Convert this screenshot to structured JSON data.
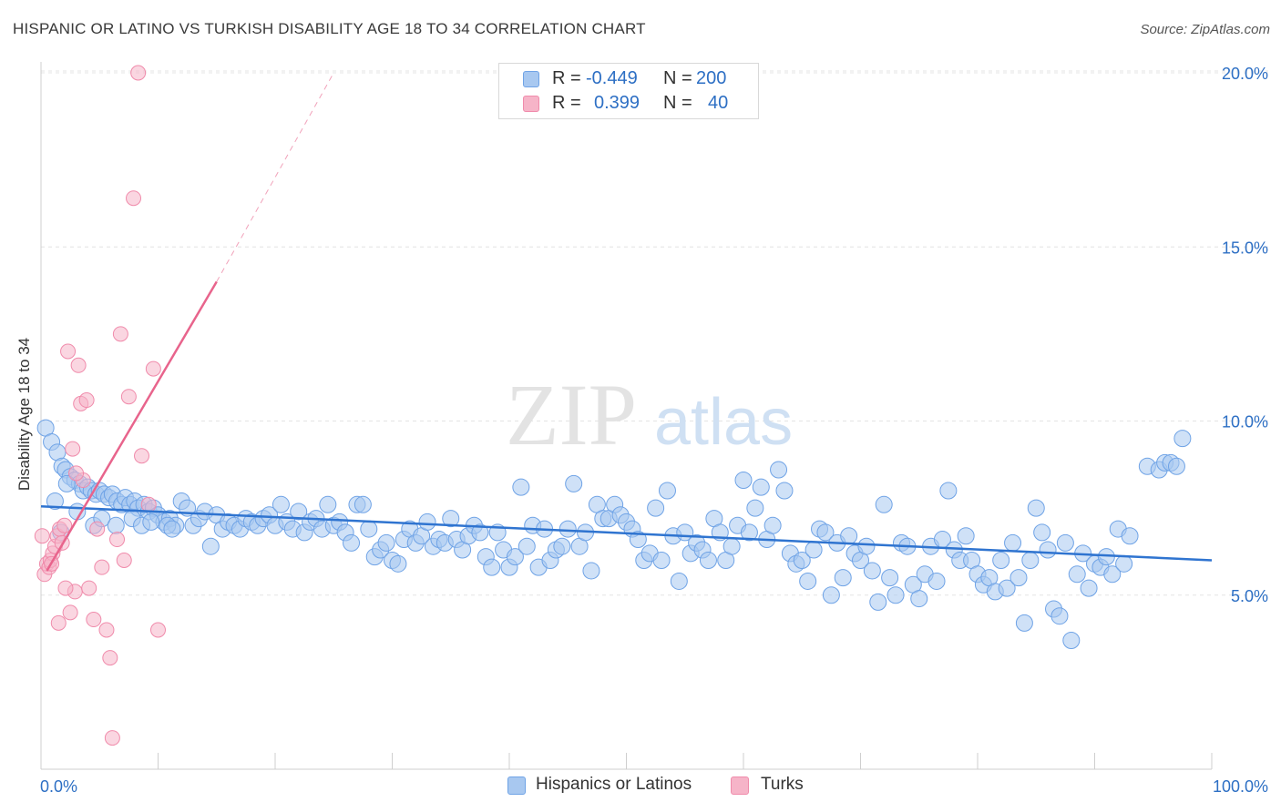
{
  "header": {
    "title": "HISPANIC OR LATINO VS TURKISH DISABILITY AGE 18 TO 34 CORRELATION CHART",
    "source": "Source: ZipAtlas.com"
  },
  "watermark": {
    "zip": "ZIP",
    "atlas": "atlas"
  },
  "legend_top": {
    "rows": [
      {
        "r_label": "R =",
        "r_value": "-0.449",
        "n_label": "N =",
        "n_value": "200",
        "color": "#a8c8f0"
      },
      {
        "r_label": "R =",
        "r_value": "0.399",
        "n_label": "N =",
        "n_value": "40",
        "color": "#f6b4c8"
      }
    ]
  },
  "legend_bottom": [
    {
      "label": "Hispanics or Latinos",
      "color": "#a8c8f0"
    },
    {
      "label": "Turks",
      "color": "#f6b4c8"
    }
  ],
  "chart_data": {
    "type": "scatter",
    "title": "HISPANIC OR LATINO VS TURKISH DISABILITY AGE 18 TO 34 CORRELATION CHART",
    "xlabel": "",
    "ylabel": "Disability Age 18 to 34",
    "xlim": [
      0,
      100
    ],
    "ylim": [
      0,
      20
    ],
    "x_tick_labels": [
      "0.0%",
      "100.0%"
    ],
    "y_ticks": [
      5,
      10,
      15,
      20
    ],
    "y_tick_labels": [
      "5.0%",
      "10.0%",
      "15.0%",
      "20.0%"
    ],
    "grid": true,
    "legend_position": "top-center",
    "series": [
      {
        "name": "Hispanics or Latinos",
        "color": "#6fa3e6",
        "fill": "#a8c8f0",
        "trend": {
          "x": [
            0,
            100
          ],
          "y": [
            7.55,
            6.0
          ],
          "color": "#2f74d0"
        },
        "points": [
          [
            0.4,
            9.8
          ],
          [
            0.9,
            9.4
          ],
          [
            1.4,
            9.1
          ],
          [
            1.8,
            8.7
          ],
          [
            2.1,
            8.6
          ],
          [
            2.5,
            8.4
          ],
          [
            2.9,
            8.3
          ],
          [
            3.3,
            8.2
          ],
          [
            3.6,
            8.0
          ],
          [
            4.0,
            8.1
          ],
          [
            4.3,
            8.0
          ],
          [
            4.7,
            7.9
          ],
          [
            5.0,
            8.0
          ],
          [
            5.4,
            7.9
          ],
          [
            5.8,
            7.8
          ],
          [
            6.1,
            7.9
          ],
          [
            6.5,
            7.7
          ],
          [
            6.9,
            7.6
          ],
          [
            7.2,
            7.8
          ],
          [
            7.6,
            7.6
          ],
          [
            8.0,
            7.7
          ],
          [
            8.3,
            7.5
          ],
          [
            8.8,
            7.6
          ],
          [
            9.2,
            7.4
          ],
          [
            9.6,
            7.5
          ],
          [
            10.0,
            7.3
          ],
          [
            10.5,
            7.1
          ],
          [
            11.0,
            7.2
          ],
          [
            11.5,
            7.0
          ],
          [
            12.0,
            7.7
          ],
          [
            12.5,
            7.5
          ],
          [
            13.0,
            7.0
          ],
          [
            13.5,
            7.2
          ],
          [
            14.0,
            7.4
          ],
          [
            14.5,
            6.4
          ],
          [
            15.0,
            7.3
          ],
          [
            15.5,
            6.9
          ],
          [
            16.0,
            7.1
          ],
          [
            16.5,
            7.0
          ],
          [
            17.0,
            6.9
          ],
          [
            17.5,
            7.2
          ],
          [
            18.0,
            7.1
          ],
          [
            18.5,
            7.0
          ],
          [
            19.0,
            7.2
          ],
          [
            19.5,
            7.3
          ],
          [
            20.0,
            7.0
          ],
          [
            20.5,
            7.6
          ],
          [
            21.0,
            7.1
          ],
          [
            21.5,
            6.9
          ],
          [
            22.0,
            7.4
          ],
          [
            22.5,
            6.8
          ],
          [
            23.0,
            7.1
          ],
          [
            23.5,
            7.2
          ],
          [
            24.0,
            6.9
          ],
          [
            24.5,
            7.6
          ],
          [
            25.0,
            7.0
          ],
          [
            25.5,
            7.1
          ],
          [
            26.0,
            6.8
          ],
          [
            26.5,
            6.5
          ],
          [
            27.0,
            7.6
          ],
          [
            27.5,
            7.6
          ],
          [
            28.0,
            6.9
          ],
          [
            28.5,
            6.1
          ],
          [
            29.0,
            6.3
          ],
          [
            29.5,
            6.5
          ],
          [
            30.0,
            6.0
          ],
          [
            30.5,
            5.9
          ],
          [
            31.0,
            6.6
          ],
          [
            31.5,
            6.9
          ],
          [
            32.0,
            6.5
          ],
          [
            32.5,
            6.7
          ],
          [
            33.0,
            7.1
          ],
          [
            33.5,
            6.4
          ],
          [
            34.0,
            6.6
          ],
          [
            34.5,
            6.5
          ],
          [
            35.0,
            7.2
          ],
          [
            35.5,
            6.6
          ],
          [
            36.0,
            6.3
          ],
          [
            36.5,
            6.7
          ],
          [
            37.0,
            7.0
          ],
          [
            37.5,
            6.8
          ],
          [
            38.0,
            6.1
          ],
          [
            38.5,
            5.8
          ],
          [
            39.0,
            6.8
          ],
          [
            39.5,
            6.3
          ],
          [
            40.0,
            5.8
          ],
          [
            40.5,
            6.1
          ],
          [
            41.0,
            8.1
          ],
          [
            41.5,
            6.4
          ],
          [
            42.0,
            7.0
          ],
          [
            42.5,
            5.8
          ],
          [
            43.0,
            6.9
          ],
          [
            43.5,
            6.0
          ],
          [
            44.0,
            6.3
          ],
          [
            44.5,
            6.4
          ],
          [
            45.0,
            6.9
          ],
          [
            45.5,
            8.2
          ],
          [
            46.0,
            6.4
          ],
          [
            46.5,
            6.8
          ],
          [
            47.0,
            5.7
          ],
          [
            47.5,
            7.6
          ],
          [
            48.0,
            7.2
          ],
          [
            48.5,
            7.2
          ],
          [
            49.0,
            7.6
          ],
          [
            49.5,
            7.3
          ],
          [
            50.0,
            7.1
          ],
          [
            50.5,
            6.9
          ],
          [
            51.0,
            6.6
          ],
          [
            51.5,
            6.0
          ],
          [
            52.0,
            6.2
          ],
          [
            52.5,
            7.5
          ],
          [
            53.0,
            6.0
          ],
          [
            53.5,
            8.0
          ],
          [
            54.0,
            6.7
          ],
          [
            54.5,
            5.4
          ],
          [
            55.0,
            6.8
          ],
          [
            55.5,
            6.2
          ],
          [
            56.0,
            6.5
          ],
          [
            56.5,
            6.3
          ],
          [
            57.0,
            6.0
          ],
          [
            57.5,
            7.2
          ],
          [
            58.0,
            6.8
          ],
          [
            58.5,
            6.0
          ],
          [
            59.0,
            6.4
          ],
          [
            59.5,
            7.0
          ],
          [
            60.0,
            8.3
          ],
          [
            60.5,
            6.8
          ],
          [
            61.0,
            7.5
          ],
          [
            61.5,
            8.1
          ],
          [
            62.0,
            6.6
          ],
          [
            62.5,
            7.0
          ],
          [
            63.0,
            8.6
          ],
          [
            63.5,
            8.0
          ],
          [
            64.0,
            6.2
          ],
          [
            64.5,
            5.9
          ],
          [
            65.0,
            6.0
          ],
          [
            65.5,
            5.4
          ],
          [
            66.0,
            6.3
          ],
          [
            66.5,
            6.9
          ],
          [
            67.0,
            6.8
          ],
          [
            67.5,
            5.0
          ],
          [
            68.0,
            6.5
          ],
          [
            68.5,
            5.5
          ],
          [
            69.0,
            6.7
          ],
          [
            69.5,
            6.2
          ],
          [
            70.0,
            6.0
          ],
          [
            70.5,
            6.4
          ],
          [
            71.0,
            5.7
          ],
          [
            71.5,
            4.8
          ],
          [
            72.0,
            7.6
          ],
          [
            72.5,
            5.5
          ],
          [
            73.0,
            5.0
          ],
          [
            73.5,
            6.5
          ],
          [
            74.0,
            6.4
          ],
          [
            74.5,
            5.3
          ],
          [
            75.0,
            4.9
          ],
          [
            75.5,
            5.6
          ],
          [
            76.0,
            6.4
          ],
          [
            76.5,
            5.4
          ],
          [
            77.0,
            6.6
          ],
          [
            77.5,
            8.0
          ],
          [
            78.0,
            6.3
          ],
          [
            78.5,
            6.0
          ],
          [
            79.0,
            6.7
          ],
          [
            79.5,
            6.0
          ],
          [
            80.0,
            5.6
          ],
          [
            80.5,
            5.3
          ],
          [
            81.0,
            5.5
          ],
          [
            81.5,
            5.1
          ],
          [
            82.0,
            6.0
          ],
          [
            82.5,
            5.2
          ],
          [
            83.0,
            6.5
          ],
          [
            83.5,
            5.5
          ],
          [
            84.0,
            4.2
          ],
          [
            84.5,
            6.0
          ],
          [
            85.0,
            7.5
          ],
          [
            85.5,
            6.8
          ],
          [
            86.0,
            6.3
          ],
          [
            86.5,
            4.6
          ],
          [
            87.0,
            4.4
          ],
          [
            87.5,
            6.5
          ],
          [
            88.0,
            3.7
          ],
          [
            88.5,
            5.6
          ],
          [
            89.0,
            6.2
          ],
          [
            89.5,
            5.2
          ],
          [
            90.0,
            5.9
          ],
          [
            90.5,
            5.8
          ],
          [
            91.0,
            6.1
          ],
          [
            91.5,
            5.6
          ],
          [
            92.0,
            6.9
          ],
          [
            92.5,
            5.9
          ],
          [
            93.0,
            6.7
          ],
          [
            94.5,
            8.7
          ],
          [
            95.5,
            8.6
          ],
          [
            96.0,
            8.8
          ],
          [
            96.5,
            8.8
          ],
          [
            97.0,
            8.7
          ],
          [
            97.5,
            9.5
          ],
          [
            1.2,
            7.7
          ],
          [
            1.7,
            6.8
          ],
          [
            2.2,
            8.2
          ],
          [
            3.1,
            7.4
          ],
          [
            4.5,
            7.0
          ],
          [
            5.2,
            7.2
          ],
          [
            6.4,
            7.0
          ],
          [
            7.8,
            7.2
          ],
          [
            8.6,
            7.0
          ],
          [
            9.4,
            7.1
          ],
          [
            10.8,
            7.0
          ],
          [
            11.2,
            6.9
          ]
        ]
      },
      {
        "name": "Turks",
        "color": "#f08bab",
        "fill": "#f6b4c8",
        "trend": {
          "x": [
            0.5,
            15
          ],
          "y": [
            5.7,
            14.0
          ],
          "color": "#e8648c",
          "extended_to": [
            25,
            20.0
          ]
        },
        "points": [
          [
            0.1,
            6.7
          ],
          [
            0.3,
            5.6
          ],
          [
            0.5,
            5.9
          ],
          [
            0.7,
            5.8
          ],
          [
            0.8,
            6.0
          ],
          [
            1.0,
            6.2
          ],
          [
            1.2,
            6.4
          ],
          [
            1.4,
            6.7
          ],
          [
            1.6,
            6.9
          ],
          [
            1.8,
            6.5
          ],
          [
            2.0,
            7.0
          ],
          [
            2.3,
            12.0
          ],
          [
            2.5,
            4.5
          ],
          [
            2.7,
            9.2
          ],
          [
            2.9,
            5.1
          ],
          [
            3.2,
            11.6
          ],
          [
            3.4,
            10.5
          ],
          [
            3.6,
            8.3
          ],
          [
            3.9,
            10.6
          ],
          [
            4.1,
            5.2
          ],
          [
            4.5,
            4.3
          ],
          [
            4.8,
            6.9
          ],
          [
            5.2,
            5.8
          ],
          [
            5.6,
            4.0
          ],
          [
            5.9,
            3.2
          ],
          [
            6.1,
            0.9
          ],
          [
            6.5,
            6.6
          ],
          [
            6.8,
            12.5
          ],
          [
            7.1,
            6.0
          ],
          [
            7.5,
            10.7
          ],
          [
            7.9,
            16.4
          ],
          [
            8.3,
            20.0
          ],
          [
            8.6,
            9.0
          ],
          [
            9.2,
            7.6
          ],
          [
            9.6,
            11.5
          ],
          [
            10.0,
            4.0
          ],
          [
            1.5,
            4.2
          ],
          [
            0.9,
            5.9
          ],
          [
            2.1,
            5.2
          ],
          [
            3.0,
            8.5
          ]
        ]
      }
    ]
  }
}
